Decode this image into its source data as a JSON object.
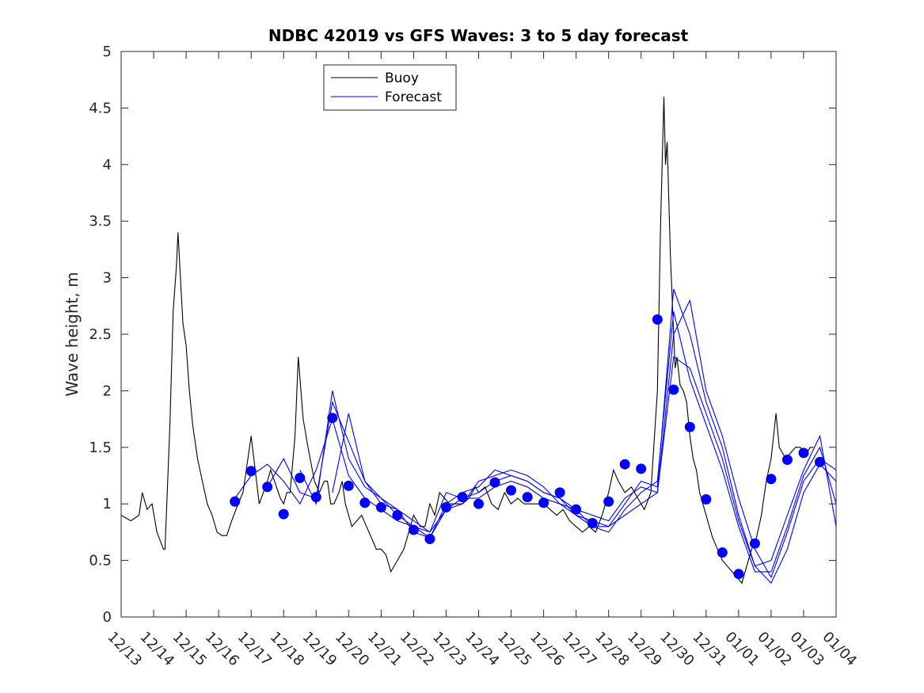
{
  "chart_data": {
    "type": "line",
    "title": "NDBC 42019 vs GFS Waves: 3 to 5 day forecast",
    "xlabel": "",
    "ylabel": "Wave height, m",
    "ylim": [
      0,
      5
    ],
    "yticks": [
      0,
      0.5,
      1,
      1.5,
      2,
      2.5,
      3,
      3.5,
      4,
      4.5,
      5
    ],
    "ytick_labels": [
      "0",
      "0.5",
      "1",
      "1.5",
      "2",
      "2.5",
      "3",
      "3.5",
      "4",
      "4.5",
      "5"
    ],
    "xlim_days": [
      0,
      22
    ],
    "xtick_labels": [
      "12/13",
      "12/14",
      "12/15",
      "12/16",
      "12/17",
      "12/18",
      "12/19",
      "12/20",
      "12/21",
      "12/22",
      "12/23",
      "12/24",
      "12/25",
      "12/26",
      "12/27",
      "12/28",
      "12/29",
      "12/30",
      "12/31",
      "01/01",
      "01/02",
      "01/03",
      "01/04"
    ],
    "legend": {
      "position": "top-center",
      "entries": [
        {
          "name": "Buoy",
          "color": "#000000"
        },
        {
          "name": "Forecast",
          "color": "#0000ff"
        }
      ]
    },
    "colors": {
      "buoy": "#000000",
      "forecast": "#0000ff",
      "markers": "#0000ff"
    },
    "buoy": {
      "name": "Buoy",
      "x": [
        0,
        0.3,
        0.55,
        0.65,
        0.8,
        0.95,
        1.1,
        1.3,
        1.35,
        1.5,
        1.6,
        1.7,
        1.75,
        1.9,
        2.0,
        2.1,
        2.2,
        2.35,
        2.5,
        2.65,
        2.8,
        2.95,
        3.1,
        3.25,
        3.4,
        3.6,
        3.75,
        3.9,
        4.0,
        4.25,
        4.5,
        4.6,
        4.9,
        5.0,
        5.1,
        5.2,
        5.35,
        5.45,
        5.6,
        5.75,
        5.95,
        6.1,
        6.25,
        6.35,
        6.45,
        6.55,
        6.7,
        6.8,
        6.9,
        7.0,
        7.1,
        7.25,
        7.4,
        7.55,
        7.7,
        7.85,
        8.0,
        8.15,
        8.3,
        8.5,
        8.7,
        8.85,
        9.0,
        9.2,
        9.35,
        9.5,
        9.65,
        9.8,
        9.95,
        10.1,
        10.3,
        10.5,
        10.7,
        10.9,
        11.0,
        11.2,
        11.4,
        11.6,
        11.8,
        12.0,
        12.2,
        12.4,
        12.6,
        12.8,
        13.0,
        13.2,
        13.4,
        13.6,
        13.8,
        14.0,
        14.2,
        14.4,
        14.6,
        14.8,
        15.0,
        15.15,
        15.3,
        15.5,
        15.7,
        15.9,
        16.1,
        16.3,
        16.5,
        16.6,
        16.7,
        16.75,
        16.8,
        16.9,
        17.0,
        17.05,
        17.1,
        17.2,
        17.3,
        17.4,
        17.5,
        17.6,
        17.7,
        17.8,
        17.9,
        18.0,
        18.1,
        18.2,
        18.35,
        18.5,
        18.65,
        18.8,
        18.95,
        19.1,
        19.25,
        19.4,
        19.55,
        19.7,
        19.85,
        20.0,
        20.15,
        20.25,
        20.35,
        20.45,
        20.6,
        20.75,
        20.9,
        21.0,
        21.1,
        21.2,
        21.3
      ],
      "values": [
        0.9,
        0.85,
        0.9,
        1.1,
        0.95,
        1.0,
        0.75,
        0.6,
        0.6,
        1.7,
        2.7,
        3.1,
        3.4,
        2.6,
        2.4,
        2.0,
        1.7,
        1.4,
        1.2,
        1.0,
        0.9,
        0.75,
        0.72,
        0.72,
        0.85,
        1.0,
        1.1,
        1.4,
        1.6,
        1.0,
        1.2,
        1.3,
        1.05,
        1.0,
        1.1,
        1.1,
        1.6,
        2.3,
        1.75,
        1.5,
        1.2,
        1.1,
        1.2,
        1.2,
        1.0,
        1.0,
        1.1,
        1.2,
        1.0,
        0.9,
        0.8,
        0.85,
        0.9,
        0.8,
        0.7,
        0.6,
        0.6,
        0.55,
        0.4,
        0.5,
        0.6,
        0.75,
        0.9,
        0.8,
        0.8,
        1.0,
        0.9,
        1.1,
        1.05,
        1.0,
        1.0,
        1.0,
        1.05,
        1.15,
        1.1,
        1.15,
        1.0,
        0.95,
        1.1,
        1.0,
        1.05,
        1.0,
        1.0,
        1.0,
        1.0,
        0.95,
        0.9,
        0.95,
        0.85,
        0.8,
        0.75,
        0.8,
        0.75,
        0.9,
        1.1,
        1.3,
        1.2,
        1.1,
        1.15,
        1.05,
        0.95,
        1.1,
        2.0,
        3.5,
        4.6,
        4.0,
        4.2,
        3.2,
        2.5,
        2.2,
        2.3,
        2.05,
        2.0,
        1.9,
        1.6,
        1.4,
        1.3,
        1.1,
        1.0,
        0.9,
        0.8,
        0.7,
        0.6,
        0.5,
        0.45,
        0.4,
        0.35,
        0.3,
        0.45,
        0.6,
        0.7,
        0.9,
        1.2,
        1.4,
        1.8,
        1.5,
        1.45,
        1.4,
        1.45,
        1.5,
        1.5,
        1.45,
        1.45,
        1.5,
        1.5
      ]
    },
    "forecast_series": [
      {
        "name": "Forecast",
        "x": [
          3.5,
          4.0,
          4.5,
          5.0,
          5.5,
          6.0,
          6.5,
          7.0,
          7.5,
          8.0,
          8.5,
          9.0,
          9.5,
          10.0,
          10.5,
          11.0,
          11.5,
          12.0,
          12.5,
          13.0,
          13.5,
          14.0,
          14.5,
          15.0,
          15.5,
          16.0,
          16.5,
          17.0,
          17.5,
          18.0,
          18.5,
          19.0,
          19.5,
          20.0,
          20.5,
          21.0,
          21.5,
          22.0
        ],
        "values": [
          1.05,
          1.25,
          1.35,
          1.2,
          1.0,
          1.3,
          1.75,
          1.25,
          1.05,
          0.95,
          0.85,
          0.8,
          0.75,
          0.95,
          1.05,
          1.05,
          1.15,
          1.2,
          1.15,
          1.05,
          1.0,
          0.95,
          0.9,
          0.85,
          1.05,
          1.15,
          1.1,
          2.5,
          2.8,
          2.0,
          1.6,
          1.05,
          0.6,
          0.35,
          0.75,
          1.2,
          1.4,
          1.3
        ]
      },
      {
        "name": "Forecast",
        "x": [
          4.5,
          5.0,
          5.5,
          6.0,
          6.5,
          7.0,
          7.5,
          8.0,
          8.5,
          9.0,
          9.5,
          10.0,
          10.5,
          11.0,
          11.5,
          12.0,
          12.5,
          13.0,
          13.5,
          14.0,
          14.5,
          15.0,
          15.5,
          16.0,
          16.5,
          17.0,
          17.5,
          18.0,
          18.5,
          19.0,
          19.5,
          20.0,
          20.5,
          21.0,
          21.5,
          22.0
        ],
        "values": [
          1.15,
          1.4,
          1.1,
          1.05,
          1.9,
          1.55,
          1.2,
          1.0,
          0.95,
          0.85,
          0.75,
          1.1,
          1.05,
          1.1,
          1.2,
          1.25,
          1.2,
          1.1,
          1.05,
          0.9,
          0.85,
          0.8,
          1.0,
          1.2,
          1.15,
          2.9,
          2.5,
          1.9,
          1.5,
          0.9,
          0.45,
          0.3,
          0.6,
          1.1,
          1.35,
          1.2
        ]
      },
      {
        "name": "Forecast",
        "x": [
          5.5,
          6.0,
          6.5,
          7.0,
          7.5,
          8.0,
          8.5,
          9.0,
          9.5,
          10.0,
          10.5,
          11.0,
          11.5,
          12.0,
          12.5,
          13.0,
          13.5,
          14.0,
          14.5,
          15.0,
          15.5,
          16.0,
          16.5,
          17.0,
          17.5,
          18.0,
          18.5,
          19.0,
          19.5,
          20.0,
          20.5,
          21.0,
          21.5,
          22.0
        ],
        "values": [
          1.3,
          1.0,
          2.0,
          1.4,
          1.15,
          1.05,
          0.9,
          0.8,
          0.7,
          1.0,
          1.1,
          1.15,
          1.3,
          1.25,
          1.2,
          1.1,
          1.05,
          0.95,
          0.8,
          0.75,
          0.95,
          1.1,
          1.2,
          2.7,
          2.1,
          1.7,
          1.3,
          0.8,
          0.4,
          0.4,
          0.8,
          1.25,
          1.5,
          1.0
        ]
      },
      {
        "name": "Forecast",
        "x": [
          6.5,
          7.0,
          7.5,
          8.0,
          8.5,
          9.0,
          9.5,
          10.0,
          10.5,
          11.0,
          11.5,
          12.0,
          12.5,
          13.0,
          13.5,
          14.0,
          14.5,
          15.0,
          15.5,
          16.0,
          16.5,
          17.0,
          17.5,
          18.0,
          18.5,
          19.0,
          19.5,
          20.0,
          20.5,
          21.0,
          21.5,
          22.0
        ],
        "values": [
          1.1,
          1.8,
          1.2,
          1.05,
          0.95,
          0.75,
          0.7,
          0.95,
          1.0,
          1.2,
          1.25,
          1.3,
          1.25,
          1.15,
          1.0,
          0.9,
          0.8,
          0.8,
          0.9,
          1.0,
          1.1,
          2.3,
          2.2,
          1.8,
          1.4,
          0.85,
          0.45,
          0.5,
          0.9,
          1.3,
          1.6,
          0.8
        ]
      }
    ],
    "forecast_points": {
      "x": [
        3.5,
        4.0,
        4.5,
        5.0,
        5.5,
        6.0,
        6.5,
        7.0,
        7.5,
        8.0,
        8.5,
        9.0,
        9.5,
        10.0,
        10.5,
        11.0,
        11.5,
        12.0,
        12.5,
        13.0,
        13.5,
        14.0,
        14.5,
        15.0,
        15.5,
        16.0,
        16.5,
        17.0,
        17.5,
        18.0,
        18.5,
        19.0,
        19.5,
        20.0,
        20.5,
        21.0,
        21.5
      ],
      "values": [
        1.02,
        1.29,
        1.15,
        0.91,
        1.23,
        1.06,
        1.76,
        1.16,
        1.01,
        0.97,
        0.9,
        0.77,
        0.69,
        0.97,
        1.06,
        1.0,
        1.19,
        1.12,
        1.06,
        1.01,
        1.1,
        0.95,
        0.83,
        1.02,
        1.35,
        1.31,
        2.63,
        2.01,
        1.68,
        1.04,
        0.57,
        0.38,
        0.65,
        1.22,
        1.39,
        1.45,
        1.37
      ]
    }
  }
}
